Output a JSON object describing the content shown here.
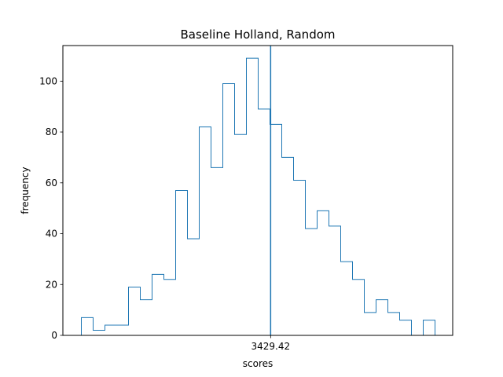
{
  "chart_data": {
    "type": "histogram",
    "title": "Baseline Holland, Random",
    "xlabel": "scores",
    "ylabel": "frequency",
    "ylim": [
      0,
      114
    ],
    "yticks": [
      0,
      20,
      40,
      60,
      80,
      100
    ],
    "xticks": [
      {
        "label": "3429.42",
        "value": 3429.42
      }
    ],
    "grid": false,
    "series": [
      {
        "bin_count": 30,
        "counts": [
          7,
          2,
          4,
          4,
          19,
          14,
          24,
          22,
          57,
          38,
          82,
          66,
          99,
          79,
          109,
          89,
          83,
          70,
          61,
          42,
          49,
          43,
          29,
          22,
          9,
          14,
          9,
          6,
          0,
          6
        ]
      }
    ],
    "vline": {
      "value": 3429.42
    },
    "colors": {
      "series": "#1f77b4",
      "vline": "#1f77b4"
    }
  }
}
